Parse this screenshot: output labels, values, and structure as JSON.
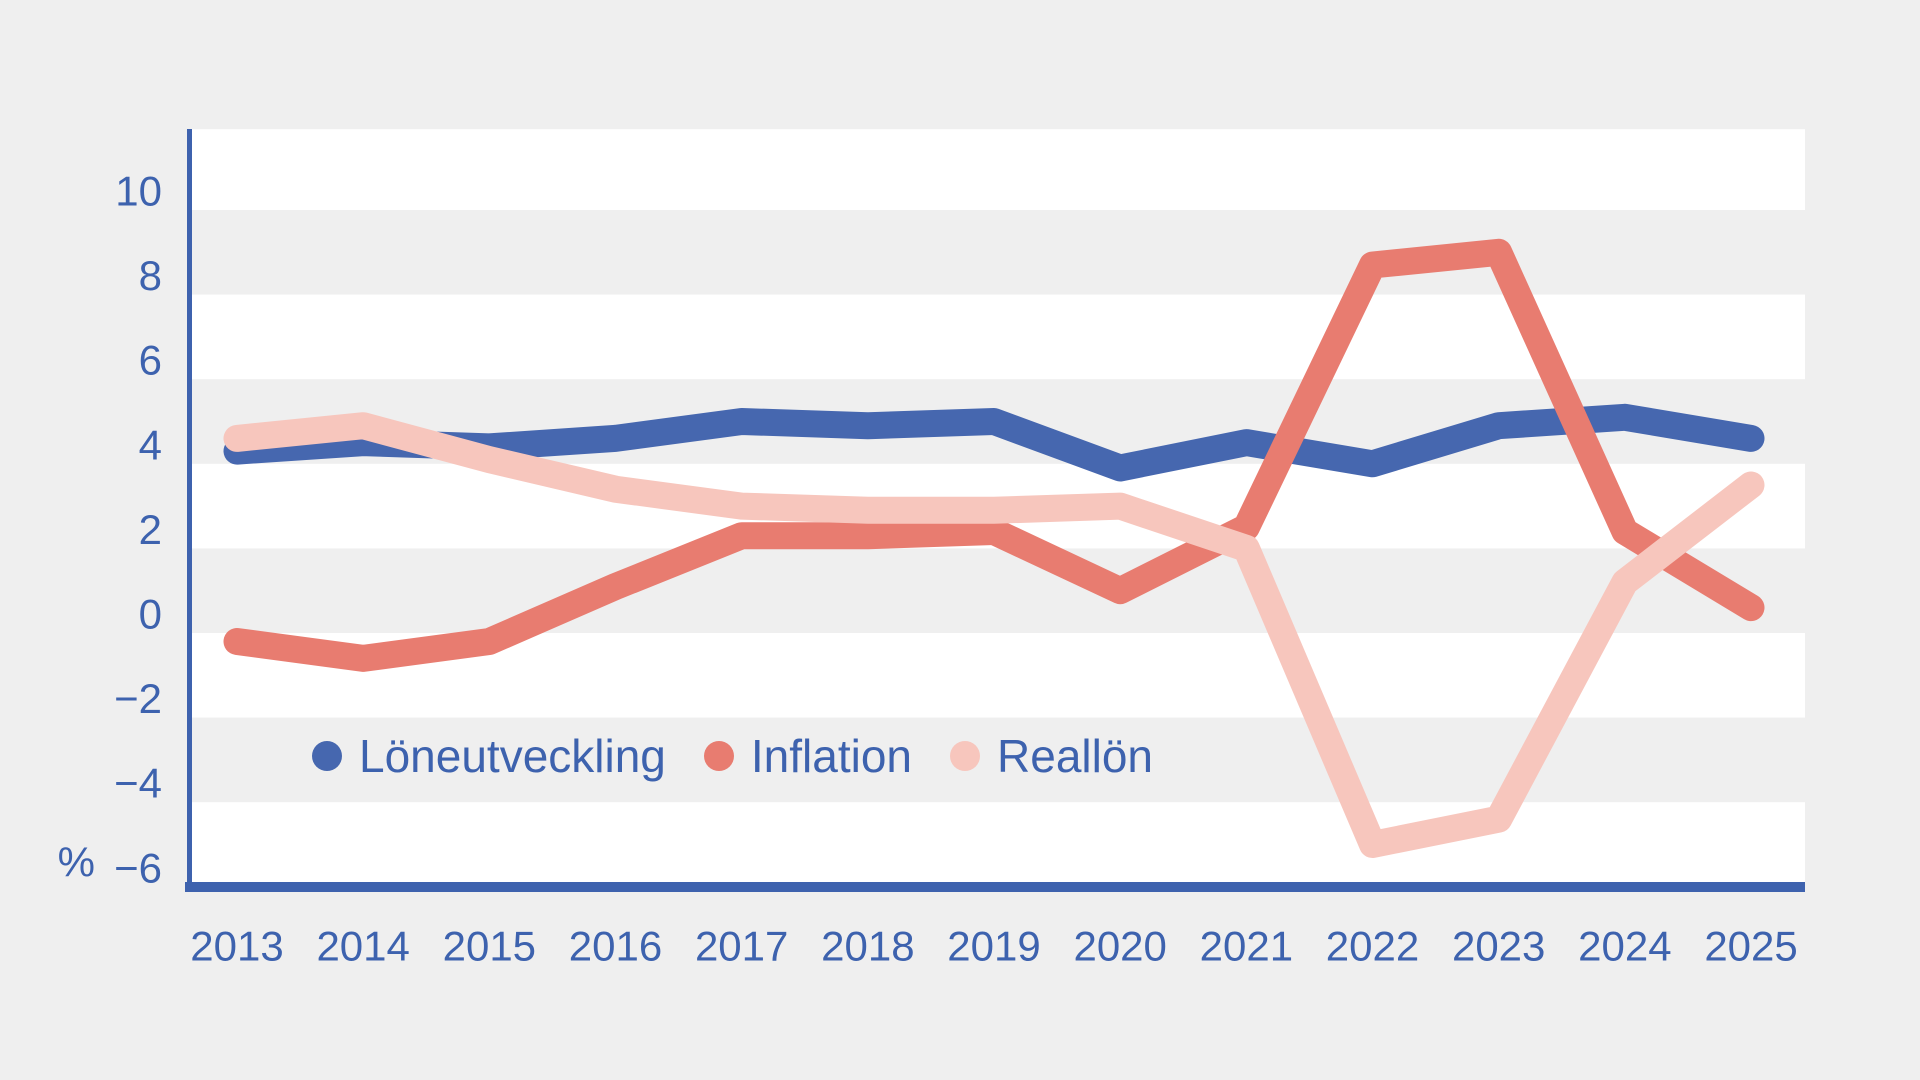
{
  "page": {
    "background_color": "#EFEFEF",
    "band_color": "#FFFFFF",
    "axis_color": "#3E62AE",
    "label_color": "#3D62AE"
  },
  "chart_data": {
    "type": "line",
    "title": "",
    "xlabel": "",
    "ylabel": "",
    "unit_label": "%",
    "x": [
      2013,
      2014,
      2015,
      2016,
      2017,
      2018,
      2019,
      2020,
      2021,
      2022,
      2023,
      2024,
      2025
    ],
    "series": [
      {
        "name": "Löneutveckling",
        "color": "#4667AF",
        "values": [
          4.3,
          4.5,
          4.4,
          4.6,
          5.0,
          4.9,
          5.0,
          3.9,
          4.5,
          4.0,
          4.9,
          5.1,
          4.6
        ]
      },
      {
        "name": "Inflation",
        "color": "#E87C70",
        "values": [
          -0.2,
          -0.6,
          -0.2,
          1.1,
          2.3,
          2.3,
          2.4,
          1.0,
          2.5,
          8.7,
          9.0,
          2.4,
          0.6
        ]
      },
      {
        "name": "Reallön",
        "color": "#F7C6BD",
        "values": [
          4.6,
          4.9,
          4.1,
          3.4,
          3.0,
          2.9,
          2.9,
          3.0,
          2.0,
          -5.0,
          -4.4,
          1.2,
          3.5
        ]
      }
    ],
    "yticks": [
      10,
      8,
      6,
      4,
      2,
      0,
      -2,
      -4,
      -6
    ],
    "ytick_labels": [
      "10",
      "8",
      "6",
      "4",
      "2",
      "0",
      "−2",
      "−4",
      "−6"
    ],
    "ylim": [
      -6,
      11.9
    ],
    "grid": "alternating horizontal white bands every 2 units",
    "legend_position": "inside lower-left",
    "line_width": 27
  },
  "legend": {
    "items": [
      {
        "label": "Löneutveckling"
      },
      {
        "label": "Inflation"
      },
      {
        "label": "Reallön"
      }
    ]
  }
}
